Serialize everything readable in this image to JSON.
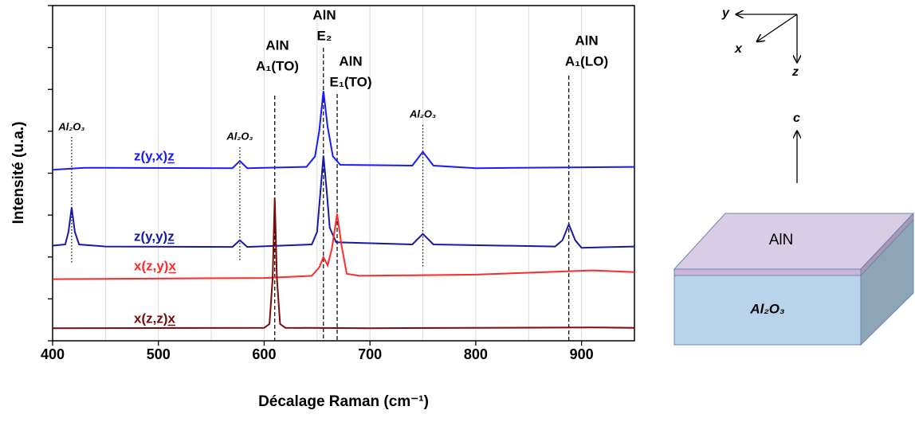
{
  "chart_data": {
    "type": "line",
    "xlabel": "Décalage Raman (cm⁻¹)",
    "ylabel": "Intensité (u.a.)",
    "xlim": [
      400,
      950
    ],
    "xticks": [
      400,
      500,
      600,
      700,
      800,
      900
    ],
    "x_grid": [
      450,
      500,
      550,
      600,
      650,
      700,
      750,
      800,
      850,
      900
    ],
    "ylim": [
      0,
      8
    ],
    "yticks": [
      0,
      1,
      2,
      3,
      4,
      5,
      6,
      7,
      8
    ],
    "series": [
      {
        "name": "z(y,x)z",
        "color": "#1a1aff",
        "x": [
          400,
          430,
          450,
          570,
          577,
          584,
          640,
          648,
          652,
          656,
          660,
          665,
          672,
          740,
          750,
          760,
          800,
          950
        ],
        "values": [
          4.08,
          4.13,
          4.13,
          4.12,
          4.29,
          4.12,
          4.15,
          4.4,
          5.0,
          5.96,
          5.1,
          4.4,
          4.2,
          4.18,
          4.51,
          4.18,
          4.12,
          4.15
        ]
      },
      {
        "name": "z(y,y)z",
        "color": "#1a1aa0",
        "x": [
          400,
          412,
          415,
          418,
          421,
          425,
          450,
          570,
          577,
          584,
          645,
          650,
          653,
          656,
          659,
          662,
          668,
          740,
          750,
          760,
          875,
          882,
          888,
          894,
          900,
          950
        ],
        "values": [
          2.27,
          2.3,
          2.6,
          3.18,
          2.6,
          2.3,
          2.25,
          2.24,
          2.4,
          2.24,
          2.3,
          2.6,
          3.5,
          4.42,
          3.6,
          2.7,
          2.35,
          2.3,
          2.55,
          2.3,
          2.25,
          2.4,
          2.78,
          2.4,
          2.22,
          2.25
        ]
      },
      {
        "name": "x(z,y)x",
        "color": "#ff2a2a",
        "x": [
          400,
          600,
          645,
          652,
          656,
          660,
          664,
          669,
          673,
          678,
          690,
          800,
          910,
          950
        ],
        "values": [
          1.47,
          1.5,
          1.55,
          1.75,
          2.0,
          1.8,
          2.2,
          3.03,
          2.3,
          1.6,
          1.55,
          1.58,
          1.68,
          1.64
        ]
      },
      {
        "name": "x(z,z)x",
        "color": "#7b0a0a",
        "x": [
          400,
          600,
          605,
          608,
          610,
          612,
          615,
          620,
          700,
          910,
          950
        ],
        "values": [
          0.3,
          0.31,
          0.4,
          1.5,
          3.41,
          1.5,
          0.4,
          0.31,
          0.3,
          0.32,
          0.31
        ]
      }
    ],
    "annotations": [
      {
        "x": 610,
        "text": [
          "AlN",
          "A₁(TO)"
        ],
        "style": "dashed"
      },
      {
        "x": 656,
        "text": [
          "AlN",
          "E₂"
        ],
        "style": "dashed"
      },
      {
        "x": 669,
        "text": [
          "AlN",
          "E₁(TO)"
        ],
        "style": "dashed"
      },
      {
        "x": 888,
        "text": [
          "AlN",
          "A₁(LO)"
        ],
        "style": "dashed"
      },
      {
        "x": 418,
        "text": [
          "Al₂O₃"
        ],
        "style": "dotted"
      },
      {
        "x": 577,
        "text": [
          "Al₂O₃"
        ],
        "style": "dotted"
      },
      {
        "x": 750,
        "text": [
          "Al₂O₃"
        ],
        "style": "dotted"
      }
    ]
  },
  "diagram": {
    "axes": {
      "y": "y",
      "x": "x",
      "z": "z"
    },
    "c_axis": "c",
    "layers": [
      "AlN",
      "Al₂O₃"
    ]
  }
}
